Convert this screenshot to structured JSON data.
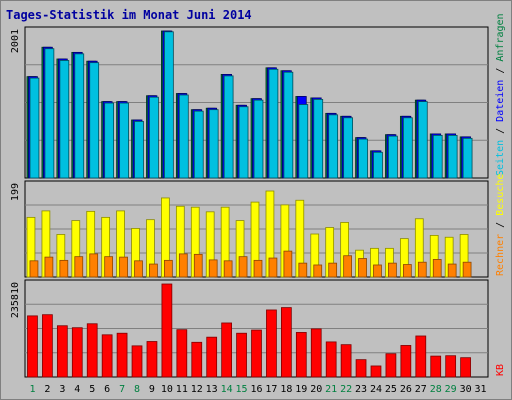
{
  "title": "Tages-Statistik im Monat Juni 2014",
  "colors": {
    "background": "#c0c0c0",
    "anfragen": "#008040",
    "dateien": "#0000ff",
    "seiten": "#00c0e0",
    "besuche": "#ffff00",
    "rechner": "#ff8000",
    "kb": "#ff0000",
    "weekend_label": "#008040",
    "title": "#0000a0"
  },
  "right_labels": {
    "anfragen": "Anfragen",
    "dateien": "Dateien",
    "seiten": "Seiten",
    "besuche": "Besuche",
    "rechner": "Rechner",
    "kb": "KB",
    "sep": " / "
  },
  "chart_data": [
    {
      "type": "bar",
      "panel": "top",
      "ymax_label": "2001",
      "ymax": 2001,
      "categories": [
        "1",
        "2",
        "3",
        "4",
        "5",
        "6",
        "7",
        "8",
        "9",
        "10",
        "11",
        "12",
        "13",
        "14",
        "15",
        "16",
        "17",
        "18",
        "19",
        "20",
        "21",
        "22",
        "23",
        "24",
        "25",
        "26",
        "27",
        "28",
        "29",
        "30",
        "31"
      ],
      "weekend_days": [
        "1",
        "7",
        "8",
        "14",
        "15",
        "21",
        "22",
        "28",
        "29"
      ],
      "series": [
        {
          "name": "Anfragen",
          "values": [
            1380,
            1780,
            1620,
            1710,
            1590,
            1040,
            1040,
            790,
            1120,
            2001,
            1150,
            930,
            950,
            1410,
            990,
            1080,
            1500,
            1460,
            1110,
            1090,
            880,
            840,
            550,
            370,
            590,
            840,
            1060,
            600,
            600,
            560,
            0
          ]
        },
        {
          "name": "Dateien",
          "values": [
            1380,
            1780,
            1620,
            1710,
            1590,
            1040,
            1040,
            790,
            1120,
            2001,
            1150,
            930,
            950,
            1410,
            990,
            1080,
            1500,
            1460,
            1110,
            1090,
            880,
            840,
            550,
            370,
            590,
            840,
            1060,
            600,
            600,
            560,
            0
          ]
        },
        {
          "name": "Seiten",
          "values": [
            1360,
            1760,
            1600,
            1690,
            1570,
            1020,
            1020,
            770,
            1100,
            1990,
            1130,
            910,
            930,
            1390,
            970,
            1060,
            1480,
            1440,
            1000,
            1070,
            860,
            820,
            530,
            350,
            570,
            820,
            1040,
            580,
            580,
            540,
            0
          ]
        }
      ]
    },
    {
      "type": "bar",
      "panel": "middle",
      "ymax_label": "199",
      "ymax": 199,
      "categories": [
        "1",
        "2",
        "3",
        "4",
        "5",
        "6",
        "7",
        "8",
        "9",
        "10",
        "11",
        "12",
        "13",
        "14",
        "15",
        "16",
        "17",
        "18",
        "19",
        "20",
        "21",
        "22",
        "23",
        "24",
        "25",
        "26",
        "27",
        "28",
        "29",
        "30",
        "31"
      ],
      "series": [
        {
          "name": "Besuche",
          "values": [
            129,
            143,
            92,
            122,
            142,
            129,
            143,
            105,
            124,
            171,
            153,
            151,
            141,
            151,
            122,
            162,
            186,
            156,
            166,
            93,
            107,
            118,
            58,
            62,
            62,
            83,
            126,
            90,
            86,
            92,
            0
          ]
        },
        {
          "name": "Rechner",
          "values": [
            35,
            43,
            36,
            44,
            50,
            44,
            43,
            35,
            28,
            36,
            50,
            49,
            37,
            35,
            44,
            36,
            41,
            56,
            30,
            26,
            30,
            46,
            40,
            26,
            30,
            27,
            32,
            38,
            28,
            32,
            0
          ]
        }
      ]
    },
    {
      "type": "bar",
      "panel": "bottom",
      "ymax_label": "235810",
      "ymax": 235810,
      "categories": [
        "1",
        "2",
        "3",
        "4",
        "5",
        "6",
        "7",
        "8",
        "9",
        "10",
        "11",
        "12",
        "13",
        "14",
        "15",
        "16",
        "17",
        "18",
        "19",
        "20",
        "21",
        "22",
        "23",
        "24",
        "25",
        "26",
        "27",
        "28",
        "29",
        "30",
        "31"
      ],
      "series": [
        {
          "name": "KB",
          "values": [
            155000,
            158000,
            130000,
            125000,
            135000,
            107000,
            111000,
            79000,
            90000,
            235810,
            120000,
            88000,
            101000,
            137000,
            111000,
            119000,
            170000,
            176000,
            113000,
            122000,
            89000,
            82000,
            44000,
            28000,
            59000,
            80000,
            104000,
            53000,
            54000,
            49000,
            0
          ]
        }
      ]
    }
  ]
}
